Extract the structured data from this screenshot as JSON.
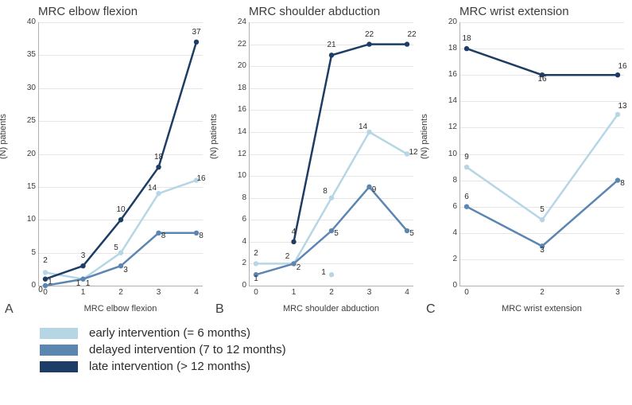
{
  "colors": {
    "early": "#b6d6e6",
    "delayed": "#5b86b2",
    "late": "#1d3d66",
    "axis": "#b0b0b0",
    "grid": "#e6e6e6",
    "text": "#3c3c3c"
  },
  "line_width": 2.5,
  "marker_radius": 3.2,
  "title_fontsize": 15,
  "tick_fontsize": 10,
  "label_fontsize": 11,
  "legend_fontsize": 15,
  "panel_letters": [
    "A",
    "B",
    "C"
  ],
  "legend": [
    {
      "key": "early",
      "label": "early intervention (= 6 months)"
    },
    {
      "key": "delayed",
      "label": "delayed intervention (7 to 12 months)"
    },
    {
      "key": "late",
      "label": "late intervention (> 12 months)"
    }
  ],
  "panels": [
    {
      "title": "MRC elbow flexion",
      "xlabel": "MRC elbow flexion",
      "ylabel": "(N) patients",
      "x": [
        0,
        1,
        2,
        3,
        4
      ],
      "ylim": [
        0,
        40
      ],
      "ytick_step": 5,
      "series": {
        "early": {
          "y": [
            2,
            1,
            5,
            14,
            16
          ],
          "labels": [
            "2",
            "1",
            "5",
            "14",
            "16"
          ]
        },
        "delayed": {
          "y": [
            0,
            1,
            3,
            8,
            8
          ],
          "labels": [
            "0",
            "1",
            "3",
            "8",
            "8"
          ]
        },
        "late": {
          "y": [
            1,
            3,
            10,
            18,
            37
          ],
          "labels": [
            "1",
            "3",
            "10",
            "18",
            "37"
          ]
        }
      },
      "label_offsets": {
        "0": {
          "early": [
            0,
            -8
          ],
          "delayed": [
            -6,
            12
          ],
          "late": [
            6,
            10
          ]
        },
        "1": {
          "early": [
            -6,
            12
          ],
          "delayed": [
            6,
            12
          ],
          "late": [
            0,
            -6
          ]
        },
        "2": {
          "early": [
            -6,
            0
          ],
          "delayed": [
            6,
            12
          ],
          "late": [
            0,
            -6
          ]
        },
        "3": {
          "early": [
            -8,
            0
          ],
          "delayed": [
            6,
            10
          ],
          "late": [
            0,
            -6
          ]
        },
        "4": {
          "early": [
            6,
            4
          ],
          "delayed": [
            6,
            10
          ],
          "late": [
            0,
            -6
          ]
        }
      }
    },
    {
      "title": "MRC shoulder abduction",
      "xlabel": "MRC shoulder abduction",
      "ylabel": "(N) patients",
      "x": [
        0,
        1,
        2,
        3,
        4
      ],
      "ylim": [
        0,
        24
      ],
      "ytick_step": 2,
      "series": {
        "early": {
          "y": [
            2,
            2,
            8,
            14,
            12
          ],
          "labels": [
            "2",
            "2",
            "8",
            "14",
            "12"
          ]
        },
        "delayed": {
          "y": [
            1,
            2,
            5,
            9,
            5
          ],
          "labels": [
            "1",
            "2",
            "5",
            "9",
            "5"
          ]
        },
        "late": {
          "y": [
            null,
            4,
            21,
            22,
            22
          ],
          "labels": [
            null,
            "4",
            "21",
            "22",
            "22"
          ]
        },
        "extra_point": {
          "x": 2,
          "y": 1,
          "color": "early",
          "label": "1"
        }
      },
      "label_offsets": {
        "0": {
          "early": [
            0,
            -6
          ],
          "delayed": [
            0,
            12
          ]
        },
        "1": {
          "early": [
            -8,
            -2
          ],
          "delayed": [
            6,
            12
          ],
          "late": [
            0,
            -6
          ]
        },
        "2": {
          "early": [
            -8,
            -2
          ],
          "delayed": [
            6,
            10
          ],
          "late": [
            0,
            -6
          ]
        },
        "3": {
          "early": [
            -8,
            0
          ],
          "delayed": [
            6,
            10
          ],
          "late": [
            0,
            -6
          ]
        },
        "4": {
          "early": [
            8,
            4
          ],
          "delayed": [
            6,
            10
          ],
          "late": [
            6,
            -6
          ]
        }
      }
    },
    {
      "title": "MRC wrist extension",
      "xlabel": "MRC wrist extension",
      "ylabel": "(N) patients",
      "x": [
        0,
        2,
        3
      ],
      "ylim": [
        0,
        20
      ],
      "ytick_step": 2,
      "series": {
        "early": {
          "y": [
            9,
            5,
            13
          ],
          "labels": [
            "9",
            "5",
            "13"
          ]
        },
        "delayed": {
          "y": [
            6,
            3,
            8
          ],
          "labels": [
            "6",
            "3",
            "8"
          ]
        },
        "late": {
          "y": [
            18,
            16,
            16
          ],
          "labels": [
            "18",
            "16",
            "16"
          ]
        }
      },
      "label_offsets": {
        "0": {
          "early": [
            0,
            -6
          ],
          "delayed": [
            0,
            -6
          ],
          "late": [
            0,
            -6
          ]
        },
        "1": {
          "early": [
            0,
            -6
          ],
          "delayed": [
            0,
            12
          ],
          "late": [
            0,
            12
          ]
        },
        "2": {
          "early": [
            6,
            -4
          ],
          "delayed": [
            6,
            10
          ],
          "late": [
            6,
            -4
          ]
        }
      }
    }
  ]
}
